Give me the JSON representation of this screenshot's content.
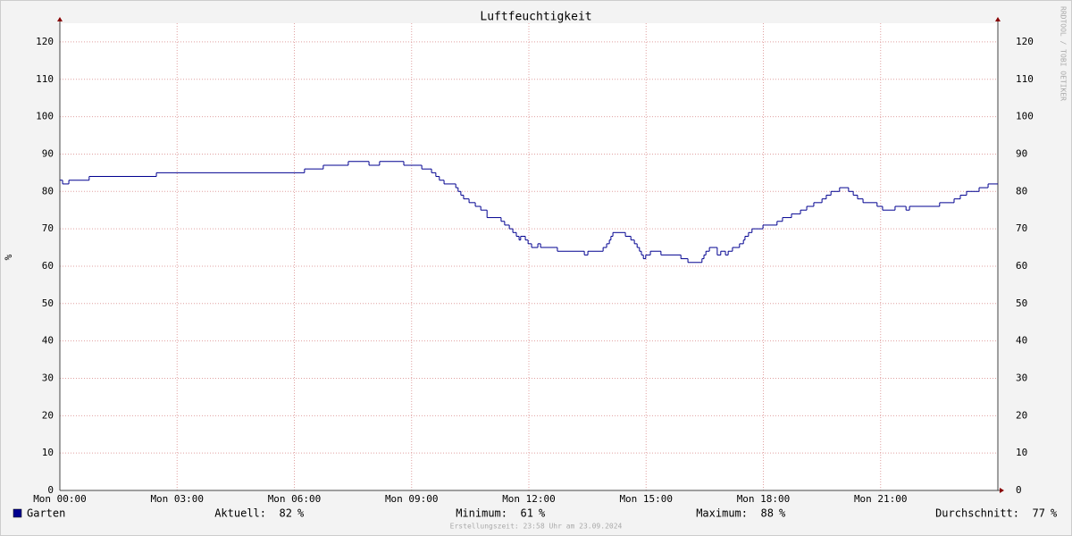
{
  "chart_data": {
    "type": "line",
    "title": "Luftfeuchtigkeit",
    "y_label": "%",
    "step": true,
    "grid": true,
    "watermark": "RRDTOOL / TOBI OETIKER",
    "footer": "Erstellungszeit: 23:58 Uhr am 23.09.2024",
    "xlim": [
      0,
      24
    ],
    "xticks": [
      {
        "value": 0,
        "label": "Mon 00:00"
      },
      {
        "value": 3,
        "label": "Mon 03:00"
      },
      {
        "value": 6,
        "label": "Mon 06:00"
      },
      {
        "value": 9,
        "label": "Mon 09:00"
      },
      {
        "value": 12,
        "label": "Mon 12:00"
      },
      {
        "value": 15,
        "label": "Mon 15:00"
      },
      {
        "value": 18,
        "label": "Mon 18:00"
      },
      {
        "value": 21,
        "label": "Mon 21:00"
      }
    ],
    "ylim": [
      0,
      125
    ],
    "yticks": [
      0,
      10,
      20,
      30,
      40,
      50,
      60,
      70,
      80,
      90,
      100,
      110,
      120
    ],
    "x": [
      0,
      0.07,
      0.23,
      0.75,
      2.47,
      6.26,
      6.74,
      7.38,
      7.91,
      8.18,
      8.8,
      9.26,
      9.51,
      9.62,
      9.71,
      9.83,
      10.13,
      10.19,
      10.26,
      10.33,
      10.47,
      10.63,
      10.77,
      10.93,
      11.29,
      11.38,
      11.5,
      11.59,
      11.68,
      11.75,
      11.79,
      11.91,
      11.98,
      12.07,
      12.23,
      12.3,
      12.73,
      13.42,
      13.51,
      13.9,
      13.99,
      14.06,
      14.1,
      14.15,
      14.47,
      14.61,
      14.7,
      14.77,
      14.83,
      14.88,
      14.93,
      14.99,
      15.11,
      15.38,
      15.89,
      16.07,
      16.43,
      16.48,
      16.53,
      16.62,
      16.82,
      16.91,
      17.03,
      17.1,
      17.21,
      17.39,
      17.49,
      17.53,
      17.62,
      17.71,
      17.99,
      18.35,
      18.49,
      18.72,
      18.95,
      19.11,
      19.29,
      19.5,
      19.61,
      19.73,
      19.95,
      20.18,
      20.3,
      20.41,
      20.55,
      20.91,
      21.05,
      21.37,
      21.65,
      21.74,
      22.51,
      22.88,
      23.04,
      23.2,
      23.52,
      23.75,
      24
    ],
    "series": [
      {
        "name": "Garten",
        "color": "#000090",
        "values": [
          83,
          82,
          83,
          84,
          85,
          86,
          87,
          88,
          87,
          88,
          87,
          86,
          85,
          84,
          83,
          82,
          81,
          80,
          79,
          78,
          77,
          76,
          75,
          73,
          72,
          71,
          70,
          69,
          68,
          67,
          68,
          67,
          66,
          65,
          66,
          65,
          64,
          63,
          64,
          65,
          66,
          67,
          68,
          69,
          68,
          67,
          66,
          65,
          64,
          63,
          62,
          63,
          64,
          63,
          62,
          61,
          62,
          63,
          64,
          65,
          63,
          64,
          63,
          64,
          65,
          66,
          67,
          68,
          69,
          70,
          71,
          72,
          73,
          74,
          75,
          76,
          77,
          78,
          79,
          80,
          81,
          80,
          79,
          78,
          77,
          76,
          75,
          76,
          75,
          76,
          77,
          78,
          79,
          80,
          81,
          82,
          82
        ]
      }
    ],
    "unit": "%",
    "stats": [
      {
        "label": "Aktuell:",
        "value": 82
      },
      {
        "label": "Minimum:",
        "value": 61
      },
      {
        "label": "Maximum:",
        "value": 88
      },
      {
        "label": "Durchschnitt:",
        "value": 77
      }
    ]
  }
}
